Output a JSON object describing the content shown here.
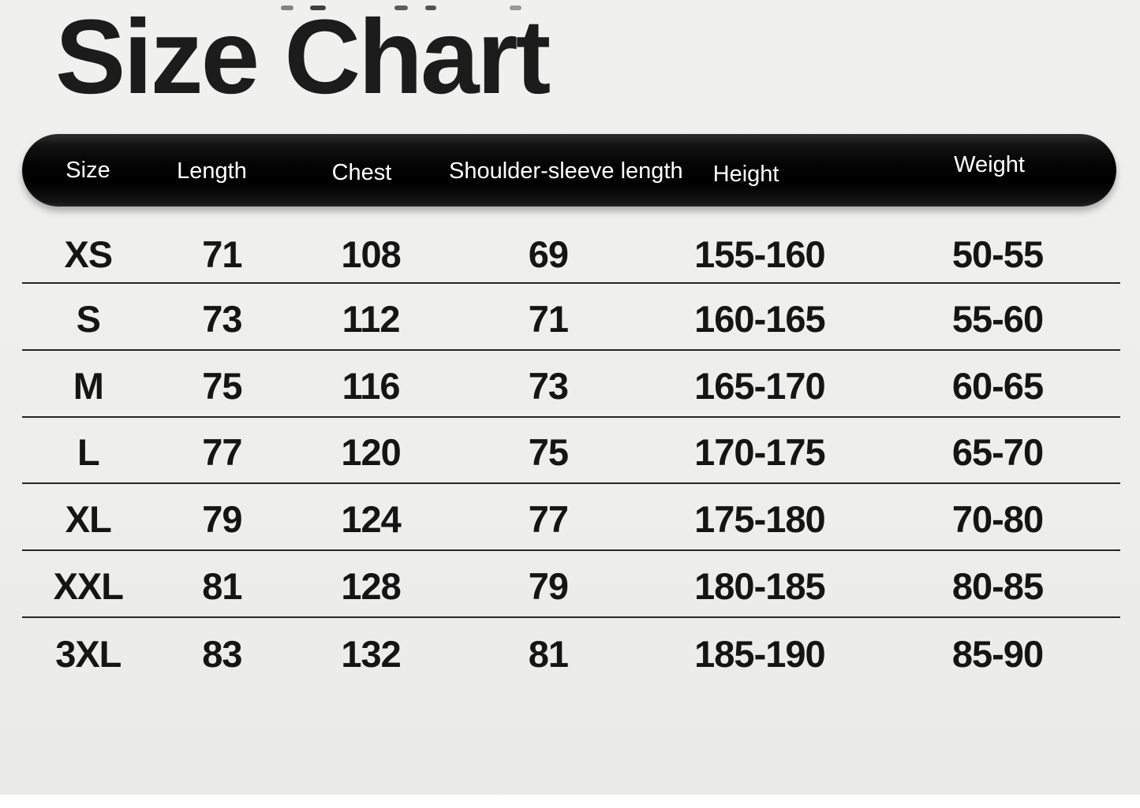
{
  "title": "Size Chart",
  "colors": {
    "background": "#eeeeec",
    "header_bar": "#000000",
    "header_text": "#ffffff",
    "body_text": "#151515",
    "row_divider": "#262626"
  },
  "chart_data": {
    "type": "table",
    "title": "Size Chart",
    "columns": [
      "Size",
      "Length",
      "Chest",
      "Shoulder-sleeve length",
      "Height",
      "Weight"
    ],
    "rows": [
      [
        "XS",
        "71",
        "108",
        "69",
        "155-160",
        "50-55"
      ],
      [
        "S",
        "73",
        "112",
        "71",
        "160-165",
        "55-60"
      ],
      [
        "M",
        "75",
        "116",
        "73",
        "165-170",
        "60-65"
      ],
      [
        "L",
        "77",
        "120",
        "75",
        "170-175",
        "65-70"
      ],
      [
        "XL",
        "79",
        "124",
        "77",
        "175-180",
        "70-80"
      ],
      [
        "XXL",
        "81",
        "128",
        "79",
        "180-185",
        "80-85"
      ],
      [
        "3XL",
        "83",
        "132",
        "81",
        "185-190",
        "85-90"
      ]
    ]
  }
}
